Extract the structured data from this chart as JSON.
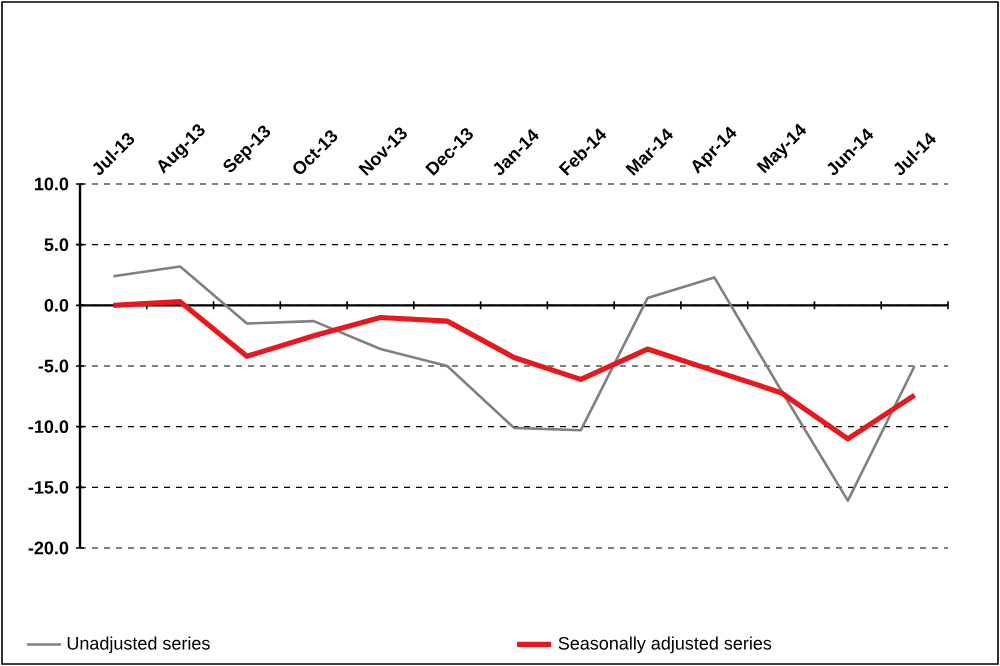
{
  "chart_data": {
    "type": "line",
    "categories": [
      "Jul-13",
      "Aug-13",
      "Sep-13",
      "Oct-13",
      "Nov-13",
      "Dec-13",
      "Jan-14",
      "Feb-14",
      "Mar-14",
      "Apr-14",
      "May-14",
      "Jun-14",
      "Jul-14"
    ],
    "series": [
      {
        "name": "Unadjusted series",
        "color": "#808080",
        "values": [
          2.4,
          3.2,
          -1.5,
          -1.3,
          -3.6,
          -5.0,
          -10.1,
          -10.3,
          0.6,
          2.3,
          -7.0,
          -16.1,
          -5.0
        ]
      },
      {
        "name": "Seasonally adjusted series",
        "color": "#e8191e",
        "values": [
          0.0,
          0.3,
          -4.2,
          -2.5,
          -1.0,
          -1.3,
          -4.3,
          -6.1,
          -3.6,
          -5.4,
          -7.2,
          -11.0,
          -7.4
        ]
      }
    ],
    "ylim": [
      -20,
      10
    ],
    "yticks": [
      {
        "value": 10,
        "label": "10.0"
      },
      {
        "value": 5,
        "label": "5.0"
      },
      {
        "value": 0,
        "label": "0.0"
      },
      {
        "value": -5,
        "label": "-5.0"
      },
      {
        "value": -10,
        "label": "-10.0"
      },
      {
        "value": -15,
        "label": "-15.0"
      },
      {
        "value": -20,
        "label": "-20.0"
      }
    ],
    "grid": "y",
    "legend": "bottom",
    "marker": "none",
    "line_style": "solid"
  }
}
